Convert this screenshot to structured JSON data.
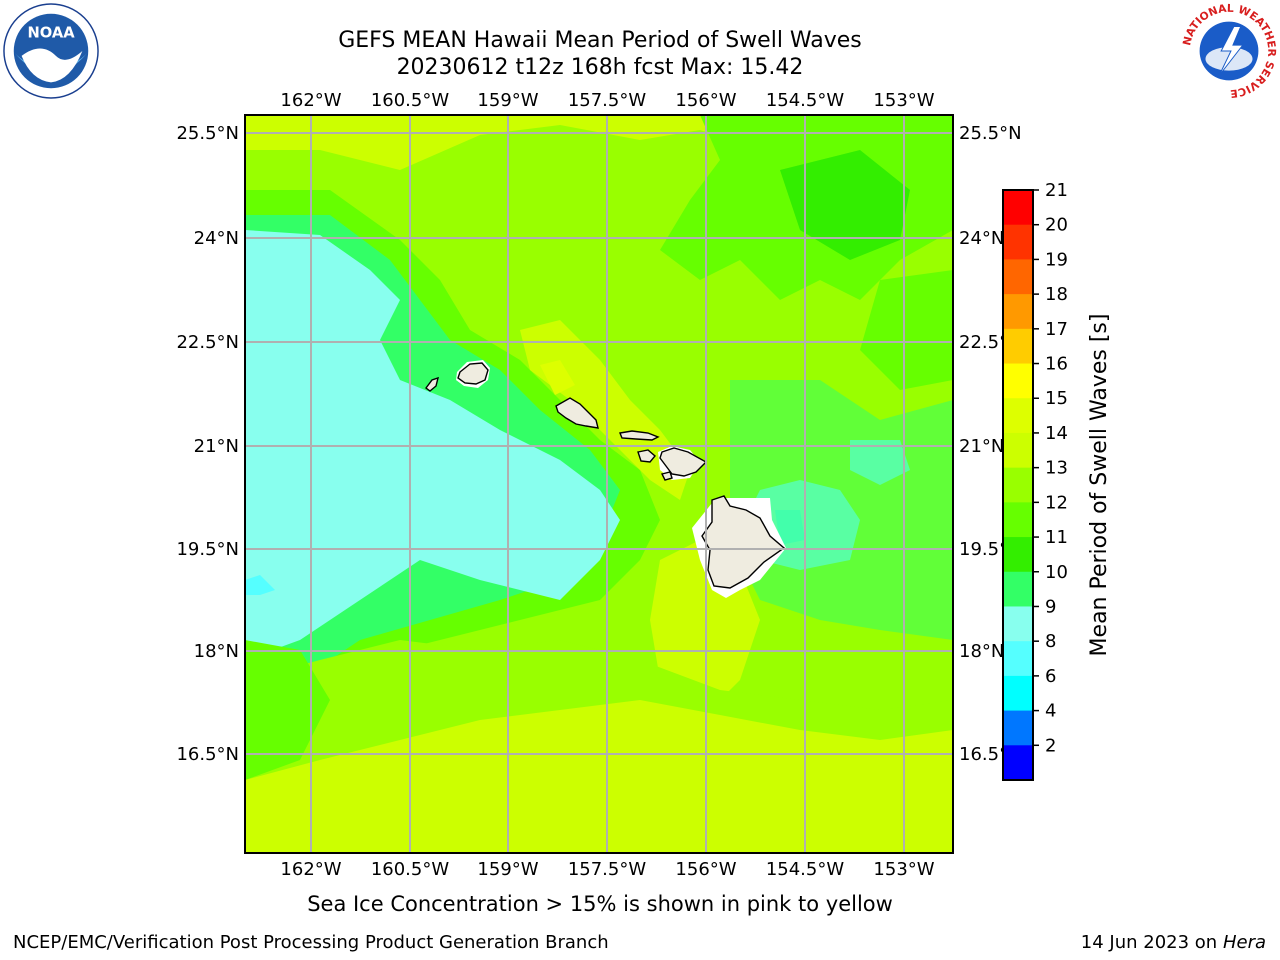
{
  "header": {
    "title": "GEFS MEAN Hawaii Mean Period of Swell Waves",
    "subtitle": "20230612 t12z 168h fcst   Max: 15.42"
  },
  "logos": {
    "left": "noaa-logo",
    "right": "nws-logo",
    "nws_ring_text": "NATIONAL WEATHER SERVICE"
  },
  "map": {
    "lon_labels": [
      "162°W",
      "160.5°W",
      "159°W",
      "157.5°W",
      "156°W",
      "154.5°W",
      "153°W"
    ],
    "lat_labels": [
      "25.5°N",
      "24°N",
      "22.5°N",
      "21°N",
      "19.5°N",
      "18°N",
      "16.5°N"
    ],
    "grid": true,
    "islands": [
      "Niihau",
      "Kauai",
      "Oahu",
      "Molokai",
      "Lanai",
      "Maui",
      "Kahoolawe",
      "Hawaii"
    ]
  },
  "colorbar": {
    "label": "Mean Period of Swell Waves [s]",
    "ticks": [
      "21",
      "20",
      "19",
      "18",
      "17",
      "16",
      "15",
      "14",
      "13",
      "12",
      "11",
      "10",
      "9",
      "8",
      "6",
      "4",
      "2"
    ],
    "levels": [
      {
        "from": 20,
        "to": 21,
        "color": "#ff0000"
      },
      {
        "from": 19,
        "to": 20,
        "color": "#ff3300"
      },
      {
        "from": 18,
        "to": 19,
        "color": "#ff6600"
      },
      {
        "from": 17,
        "to": 18,
        "color": "#ff9900"
      },
      {
        "from": 16,
        "to": 17,
        "color": "#ffcc00"
      },
      {
        "from": 15,
        "to": 16,
        "color": "#ffff00"
      },
      {
        "from": 14,
        "to": 15,
        "color": "#ddff00"
      },
      {
        "from": 13,
        "to": 14,
        "color": "#ccff00"
      },
      {
        "from": 12,
        "to": 13,
        "color": "#99ff00"
      },
      {
        "from": 11,
        "to": 12,
        "color": "#66ff00"
      },
      {
        "from": 10,
        "to": 11,
        "color": "#33ee00"
      },
      {
        "from": 9,
        "to": 10,
        "color": "#33ff66"
      },
      {
        "from": 8,
        "to": 9,
        "color": "#88ffee"
      },
      {
        "from": 6,
        "to": 8,
        "color": "#55ffff"
      },
      {
        "from": 4,
        "to": 6,
        "color": "#00ffff"
      },
      {
        "from": 2,
        "to": 4,
        "color": "#0077ff"
      },
      {
        "from": 0,
        "to": 2,
        "color": "#0000ff"
      }
    ]
  },
  "footer": {
    "note": "Sea Ice Concentration > 15% is shown in pink to yellow",
    "credit": "NCEP/EMC/Verification Post Processing Product Generation Branch",
    "date": "14 Jun 2023 on",
    "host": "Hera"
  }
}
